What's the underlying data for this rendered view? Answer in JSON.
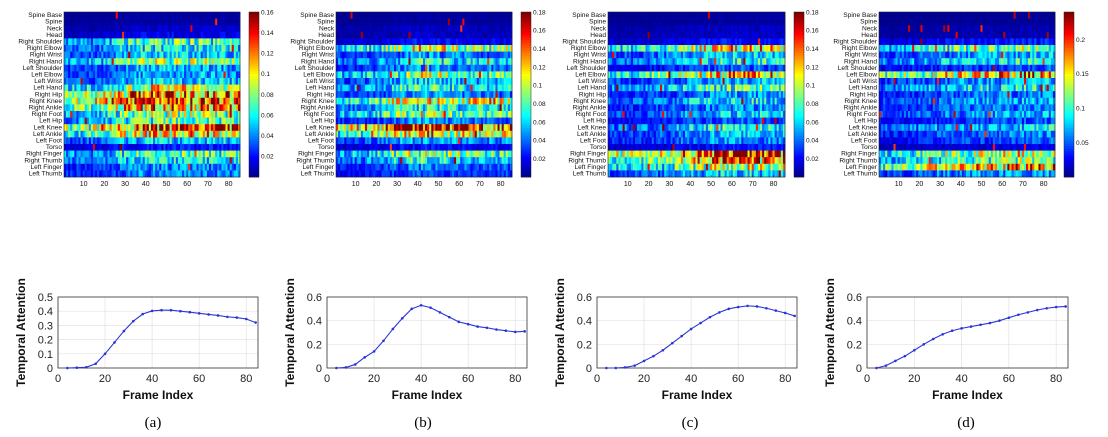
{
  "figure": {
    "joints": [
      "Spine Base",
      "Spine",
      "Neck",
      "Head",
      "Right Shoulder",
      "Right Elbow",
      "Right Wrist",
      "Right Hand",
      "Left Shoulder",
      "Left Elbow",
      "Left Wrist",
      "Left Hand",
      "Right Hip",
      "Right Knee",
      "Right Ankle",
      "Right Foot",
      "Left Hip",
      "Left Knee",
      "Left Ankle",
      "Left Foot",
      "Torso",
      "Right Finger",
      "Right Thumb",
      "Left Finger",
      "Left Thumb"
    ],
    "colormap": "jet"
  },
  "chart_data": [
    {
      "panel": "(a)",
      "heatmap": {
        "type": "heatmap",
        "frames": 85,
        "xticks": [
          10,
          20,
          30,
          40,
          50,
          60,
          70,
          80
        ],
        "colorbar_ticks": [
          0.02,
          0.04,
          0.06,
          0.08,
          0.1,
          0.12,
          0.14,
          0.16
        ],
        "clim": [
          0,
          0.16
        ],
        "row_level": [
          0.005,
          0.005,
          0.01,
          0.015,
          0.06,
          0.05,
          0.045,
          0.07,
          0.04,
          0.04,
          0.045,
          0.08,
          0.11,
          0.125,
          0.1,
          0.07,
          0.06,
          0.115,
          0.09,
          0.045,
          0.02,
          0.06,
          0.05,
          0.035,
          0.035
        ]
      },
      "line": {
        "type": "line",
        "xlabel": "Frame Index",
        "ylabel": "Temporal Attention",
        "xlim": [
          0,
          85
        ],
        "ylim": [
          0,
          0.5
        ],
        "xticks": [
          0,
          20,
          40,
          60,
          80
        ],
        "yticks": [
          0,
          0.1,
          0.2,
          0.3,
          0.4,
          0.5
        ],
        "x": [
          4,
          8,
          12,
          16,
          20,
          24,
          28,
          32,
          36,
          40,
          44,
          48,
          52,
          56,
          60,
          64,
          68,
          72,
          76,
          80,
          84
        ],
        "y": [
          0.0,
          0.002,
          0.005,
          0.03,
          0.1,
          0.18,
          0.26,
          0.33,
          0.38,
          0.402,
          0.407,
          0.407,
          0.4,
          0.393,
          0.385,
          0.377,
          0.37,
          0.36,
          0.355,
          0.345,
          0.32
        ]
      }
    },
    {
      "panel": "(b)",
      "heatmap": {
        "type": "heatmap",
        "frames": 85,
        "xticks": [
          10,
          20,
          30,
          40,
          50,
          60,
          70,
          80
        ],
        "colorbar_ticks": [
          0.02,
          0.04,
          0.06,
          0.08,
          0.1,
          0.12,
          0.14,
          0.16,
          0.18
        ],
        "clim": [
          0,
          0.18
        ],
        "row_level": [
          0.005,
          0.005,
          0.01,
          0.01,
          0.02,
          0.09,
          0.04,
          0.06,
          0.04,
          0.08,
          0.05,
          0.065,
          0.04,
          0.1,
          0.06,
          0.08,
          0.04,
          0.155,
          0.1,
          0.045,
          0.02,
          0.08,
          0.06,
          0.035,
          0.03
        ]
      },
      "line": {
        "type": "line",
        "xlabel": "Frame Index",
        "ylabel": "Temporal Attention",
        "xlim": [
          0,
          85
        ],
        "ylim": [
          0,
          0.6
        ],
        "xticks": [
          0,
          20,
          40,
          60,
          80
        ],
        "yticks": [
          0,
          0.2,
          0.4,
          0.6
        ],
        "x": [
          4,
          8,
          12,
          16,
          20,
          24,
          28,
          32,
          36,
          40,
          44,
          48,
          52,
          56,
          60,
          64,
          68,
          72,
          76,
          80,
          84
        ],
        "y": [
          0.0,
          0.005,
          0.03,
          0.09,
          0.14,
          0.23,
          0.33,
          0.42,
          0.5,
          0.53,
          0.51,
          0.47,
          0.43,
          0.39,
          0.37,
          0.35,
          0.34,
          0.325,
          0.315,
          0.305,
          0.31
        ]
      }
    },
    {
      "panel": "(c)",
      "heatmap": {
        "type": "heatmap",
        "frames": 85,
        "xticks": [
          10,
          20,
          30,
          40,
          50,
          60,
          70,
          80
        ],
        "colorbar_ticks": [
          0.02,
          0.04,
          0.06,
          0.08,
          0.1,
          0.12,
          0.14,
          0.16,
          0.18
        ],
        "clim": [
          0,
          0.18
        ],
        "row_level": [
          0.005,
          0.005,
          0.01,
          0.01,
          0.02,
          0.095,
          0.05,
          0.06,
          0.03,
          0.1,
          0.045,
          0.065,
          0.04,
          0.055,
          0.04,
          0.05,
          0.03,
          0.06,
          0.045,
          0.04,
          0.02,
          0.135,
          0.11,
          0.085,
          0.05
        ]
      },
      "line": {
        "type": "line",
        "xlabel": "Frame Index",
        "ylabel": "Temporal Attention",
        "xlim": [
          0,
          85
        ],
        "ylim": [
          0,
          0.6
        ],
        "xticks": [
          0,
          20,
          40,
          60,
          80
        ],
        "yticks": [
          0,
          0.2,
          0.4,
          0.6
        ],
        "x": [
          4,
          8,
          12,
          16,
          20,
          24,
          28,
          32,
          36,
          40,
          44,
          48,
          52,
          56,
          60,
          64,
          68,
          72,
          76,
          80,
          84
        ],
        "y": [
          0.0,
          0.0,
          0.005,
          0.02,
          0.06,
          0.1,
          0.15,
          0.21,
          0.27,
          0.33,
          0.38,
          0.43,
          0.47,
          0.5,
          0.515,
          0.525,
          0.52,
          0.505,
          0.485,
          0.465,
          0.44
        ]
      }
    },
    {
      "panel": "(d)",
      "heatmap": {
        "type": "heatmap",
        "frames": 85,
        "xticks": [
          10,
          20,
          30,
          40,
          50,
          60,
          70,
          80
        ],
        "colorbar_ticks": [
          0.05,
          0.1,
          0.15,
          0.2
        ],
        "clim": [
          0,
          0.24
        ],
        "row_level": [
          0.005,
          0.005,
          0.01,
          0.01,
          0.03,
          0.1,
          0.06,
          0.08,
          0.04,
          0.15,
          0.06,
          0.08,
          0.05,
          0.06,
          0.05,
          0.06,
          0.04,
          0.07,
          0.05,
          0.04,
          0.02,
          0.12,
          0.1,
          0.15,
          0.06
        ]
      },
      "line": {
        "type": "line",
        "xlabel": "Frame Index",
        "ylabel": "Temporal Attention",
        "xlim": [
          0,
          85
        ],
        "ylim": [
          0,
          0.6
        ],
        "xticks": [
          0,
          20,
          40,
          60,
          80
        ],
        "yticks": [
          0,
          0.2,
          0.4,
          0.6
        ],
        "x": [
          4,
          8,
          12,
          16,
          20,
          24,
          28,
          32,
          36,
          40,
          44,
          48,
          52,
          56,
          60,
          64,
          68,
          72,
          76,
          80,
          84
        ],
        "y": [
          0.0,
          0.02,
          0.06,
          0.1,
          0.15,
          0.2,
          0.245,
          0.285,
          0.315,
          0.335,
          0.35,
          0.365,
          0.38,
          0.4,
          0.425,
          0.45,
          0.47,
          0.49,
          0.505,
          0.515,
          0.52
        ]
      }
    }
  ]
}
